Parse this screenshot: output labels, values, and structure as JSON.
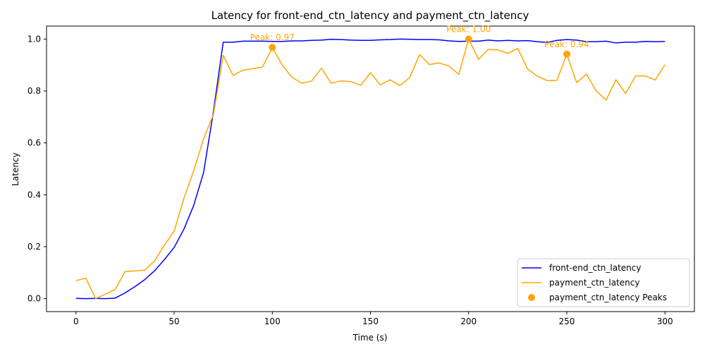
{
  "chart_data": {
    "type": "line",
    "title": "Latency for front-end_ctn_latency and payment_ctn_latency",
    "xlabel": "Time (s)",
    "ylabel": "Latency",
    "xlim": [
      -15,
      315
    ],
    "ylim": [
      -0.05,
      1.05
    ],
    "x_ticks": [
      0,
      50,
      100,
      150,
      200,
      250,
      300
    ],
    "x_tick_labels": [
      "0",
      "50",
      "100",
      "150",
      "200",
      "250",
      "300"
    ],
    "y_ticks": [
      0.0,
      0.2,
      0.4,
      0.6,
      0.8,
      1.0
    ],
    "y_tick_labels": [
      "0.0",
      "0.2",
      "0.4",
      "0.6",
      "0.8",
      "1.0"
    ],
    "grid": false,
    "legend_position": "lower-right",
    "x": [
      0,
      5,
      10,
      15,
      20,
      25,
      30,
      35,
      40,
      45,
      50,
      55,
      60,
      65,
      70,
      75,
      80,
      85,
      90,
      95,
      100,
      105,
      110,
      115,
      120,
      125,
      130,
      135,
      140,
      145,
      150,
      155,
      160,
      165,
      170,
      175,
      180,
      185,
      190,
      195,
      200,
      205,
      210,
      215,
      220,
      225,
      230,
      235,
      240,
      245,
      250,
      255,
      260,
      265,
      270,
      275,
      280,
      285,
      290,
      295,
      300
    ],
    "series": [
      {
        "name": "front-end_ctn_latency",
        "color": "#0000ff",
        "values": [
          0.001,
          0.0,
          0.001,
          0.0,
          0.002,
          0.022,
          0.046,
          0.073,
          0.107,
          0.15,
          0.197,
          0.268,
          0.36,
          0.486,
          0.72,
          0.988,
          0.988,
          0.992,
          0.992,
          0.992,
          0.991,
          0.991,
          0.993,
          0.993,
          0.995,
          0.996,
          0.999,
          0.998,
          0.996,
          0.995,
          0.995,
          0.997,
          0.998,
          1.0,
          0.999,
          0.998,
          0.998,
          0.997,
          0.993,
          0.991,
          0.992,
          0.992,
          0.996,
          0.993,
          0.995,
          0.993,
          0.994,
          0.99,
          0.987,
          0.995,
          0.998,
          0.996,
          0.99,
          0.99,
          0.992,
          0.985,
          0.988,
          0.988,
          0.991,
          0.99,
          0.991
        ]
      },
      {
        "name": "payment_ctn_latency",
        "color": "#ffa500",
        "values": [
          0.069,
          0.079,
          0.0,
          0.017,
          0.036,
          0.104,
          0.107,
          0.11,
          0.145,
          0.206,
          0.26,
          0.387,
          0.494,
          0.615,
          0.71,
          0.937,
          0.86,
          0.88,
          0.886,
          0.892,
          0.968,
          0.9,
          0.853,
          0.83,
          0.838,
          0.888,
          0.83,
          0.839,
          0.836,
          0.822,
          0.87,
          0.823,
          0.843,
          0.821,
          0.852,
          0.94,
          0.902,
          0.908,
          0.896,
          0.864,
          1.0,
          0.922,
          0.96,
          0.958,
          0.945,
          0.964,
          0.885,
          0.857,
          0.84,
          0.841,
          0.942,
          0.832,
          0.865,
          0.8,
          0.765,
          0.843,
          0.79,
          0.858,
          0.858,
          0.842,
          0.901
        ]
      }
    ],
    "peaks": {
      "name": "payment_ctn_latency Peaks",
      "color": "#ffa500",
      "points": [
        {
          "x": 100,
          "y": 0.968,
          "label": "Peak: 0.97"
        },
        {
          "x": 200,
          "y": 1.0,
          "label": "Peak: 1.00"
        },
        {
          "x": 250,
          "y": 0.942,
          "label": "Peak: 0.94"
        }
      ]
    },
    "legend": [
      {
        "label": "front-end_ctn_latency",
        "kind": "line",
        "color": "#0000ff"
      },
      {
        "label": "payment_ctn_latency",
        "kind": "line",
        "color": "#ffa500"
      },
      {
        "label": "payment_ctn_latency Peaks",
        "kind": "marker",
        "color": "#ffa500"
      }
    ]
  }
}
